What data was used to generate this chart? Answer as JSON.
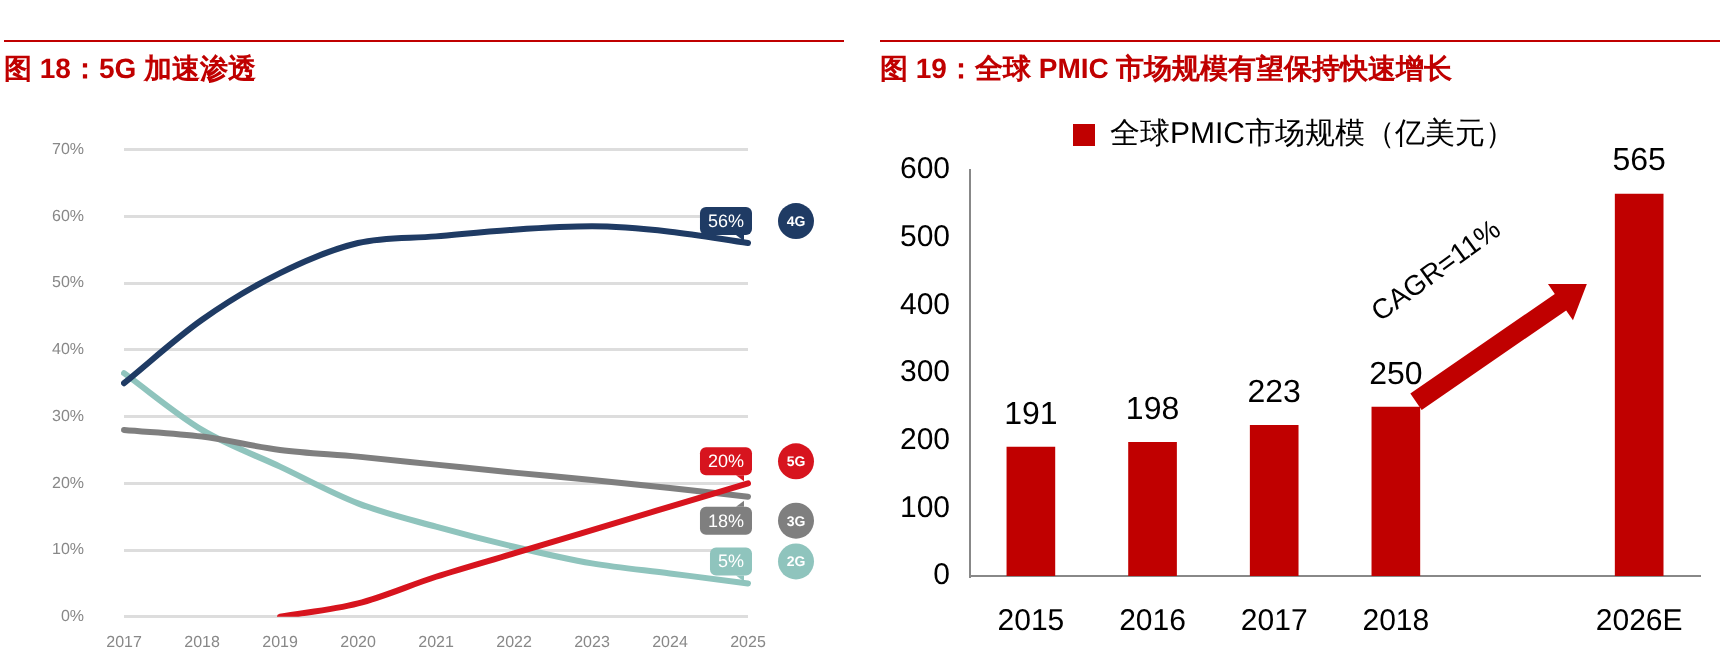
{
  "chart_data": [
    {
      "type": "line",
      "title": "图 18：5G 加速渗透",
      "categories": [
        "2017",
        "2018",
        "2019",
        "2020",
        "2021",
        "2022",
        "2023",
        "2024",
        "2025"
      ],
      "series": [
        {
          "name": "4G",
          "color": "#1f3b64",
          "values": [
            35,
            44.5,
            51.5,
            56,
            57,
            58,
            58.5,
            57.7,
            56
          ],
          "value_labels": [
            null,
            null,
            null,
            null,
            null,
            null,
            null,
            null,
            "56%"
          ]
        },
        {
          "name": "5G",
          "color": "#d7141e",
          "values": [
            null,
            null,
            0,
            2,
            6,
            9.5,
            13,
            16.5,
            20
          ],
          "value_labels": [
            null,
            null,
            null,
            null,
            null,
            null,
            null,
            null,
            "20%"
          ]
        },
        {
          "name": "3G",
          "color": "#7f7f7f",
          "values": [
            28,
            27,
            25,
            24,
            22.8,
            21.6,
            20.5,
            19.3,
            18
          ],
          "value_labels": [
            null,
            null,
            null,
            null,
            null,
            null,
            null,
            null,
            "18%"
          ]
        },
        {
          "name": "2G",
          "color": "#8fc4bd",
          "values": [
            36.5,
            28,
            22.5,
            17,
            13.5,
            10.5,
            8,
            6.5,
            5
          ],
          "value_labels": [
            null,
            null,
            null,
            null,
            null,
            null,
            null,
            null,
            "5%"
          ]
        }
      ],
      "ylim": [
        0,
        70
      ],
      "yticks": [
        {
          "value": 0,
          "label": "0%"
        },
        {
          "value": 10,
          "label": "10%"
        },
        {
          "value": 20,
          "label": "20%"
        },
        {
          "value": 30,
          "label": "30%"
        },
        {
          "value": 40,
          "label": "40%"
        },
        {
          "value": 50,
          "label": "50%"
        },
        {
          "value": 60,
          "label": "60%"
        },
        {
          "value": 70,
          "label": "70%"
        }
      ],
      "grid": "y"
    },
    {
      "type": "bar",
      "title": "图 19：全球 PMIC 市场规模有望保持快速增长",
      "categories": [
        "2015",
        "2016",
        "2017",
        "2018",
        null,
        "2026E"
      ],
      "series": [
        {
          "name": "全球PMIC市场规模（亿美元）",
          "color": "#c00000",
          "values": [
            191,
            198,
            223,
            250,
            null,
            565
          ]
        }
      ],
      "ylim": [
        0,
        600
      ],
      "yticks": [
        0,
        100,
        200,
        300,
        400,
        500,
        600
      ],
      "legend": "top",
      "data_labels": true,
      "annotations": [
        "CAGR=11%"
      ]
    }
  ]
}
